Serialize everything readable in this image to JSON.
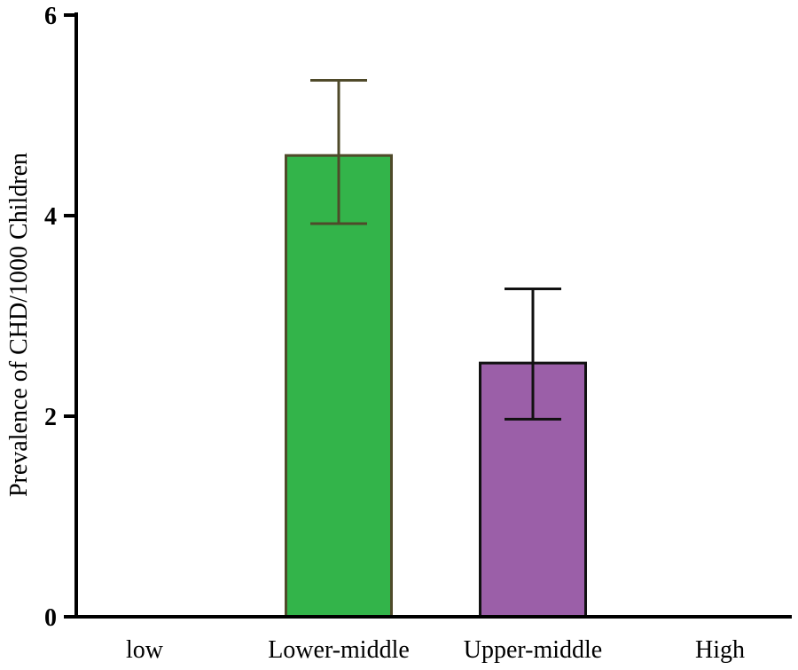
{
  "chart_data": {
    "type": "bar",
    "title": "",
    "xlabel": "",
    "ylabel": "Prevalence of CHD/1000 Children",
    "ylim": [
      0,
      6
    ],
    "yticks": [
      0,
      2,
      4,
      6
    ],
    "grid": false,
    "categories": [
      "low",
      "Lower-middle",
      "Upper-middle",
      "High"
    ],
    "values": [
      null,
      4.6,
      2.53,
      null
    ],
    "error_low": [
      null,
      3.92,
      1.97,
      null
    ],
    "error_high": [
      null,
      5.35,
      3.27,
      null
    ],
    "bar_colors": [
      "#33b44a",
      "#33b44a",
      "#9b5fa8",
      "#9b5fa8"
    ],
    "bar_edge_colors": [
      "#4f4a2a",
      "#4f4a2a",
      "#111111",
      "#111111"
    ],
    "error_colors": [
      "#4f4a2a",
      "#4f4a2a",
      "#111111",
      "#111111"
    ]
  }
}
